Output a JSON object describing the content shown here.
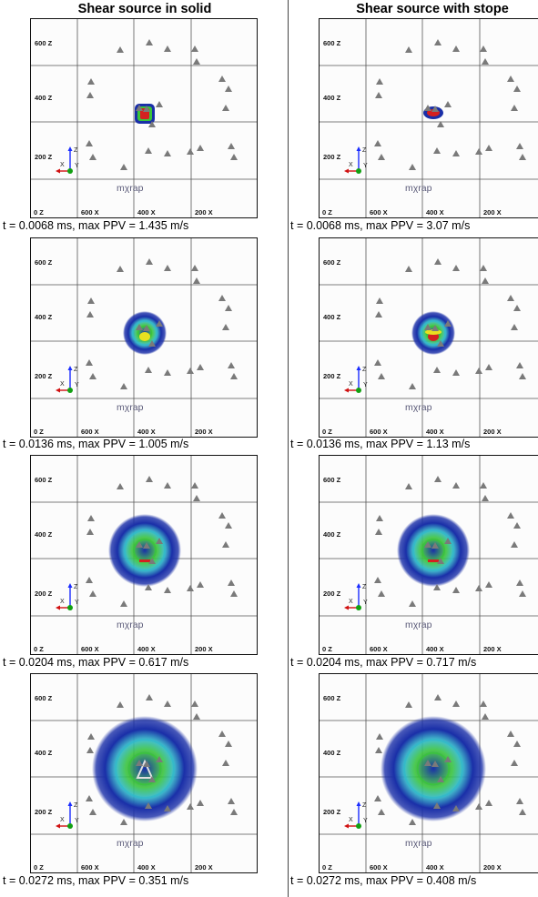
{
  "columns": [
    {
      "title": "Shear source in solid"
    },
    {
      "title": "Shear source with stope"
    }
  ],
  "axis_labels": {
    "z": [
      "600 Z",
      "400 Z",
      "200 Z",
      "0 Z"
    ],
    "x": [
      "600 X",
      "400 X",
      "200 X"
    ]
  },
  "axis_triad": {
    "z": "Z",
    "x": "X",
    "y": "Y"
  },
  "brand": "mχrap",
  "colors": {
    "wave_outer": "#1a2fa8",
    "wave_mid": "#2fb8c8",
    "wave_inner": "#3ac43a",
    "wave_hot": "#e8e020",
    "wave_core": "#d42020",
    "sensor": "#7a7a7a",
    "axis_z": "#1a2cff",
    "axis_x": "#d01010",
    "axis_y": "#12a012"
  },
  "panels": [
    {
      "caption": "t = 0.0068 ms, max PPV = 1.435 m/s",
      "stage": 1,
      "stope": false
    },
    {
      "caption": "t = 0.0068 ms, max PPV = 3.07 m/s",
      "stage": 1,
      "stope": true
    },
    {
      "caption": "t = 0.0136 ms, max PPV = 1.005 m/s",
      "stage": 2,
      "stope": false
    },
    {
      "caption": "t = 0.0136 ms, max PPV = 1.13 m/s",
      "stage": 2,
      "stope": true
    },
    {
      "caption": "t = 0.0204 ms, max PPV = 0.617 m/s",
      "stage": 3,
      "stope": false
    },
    {
      "caption": "t = 0.0204 ms, max PPV = 0.717 m/s",
      "stage": 3,
      "stope": true
    },
    {
      "caption": "t = 0.0272 ms, max PPV = 0.351 m/s",
      "stage": 4,
      "stope": false
    },
    {
      "caption": "t = 0.0272 ms, max PPV = 0.408 m/s",
      "stage": 4,
      "stope": true
    }
  ]
}
